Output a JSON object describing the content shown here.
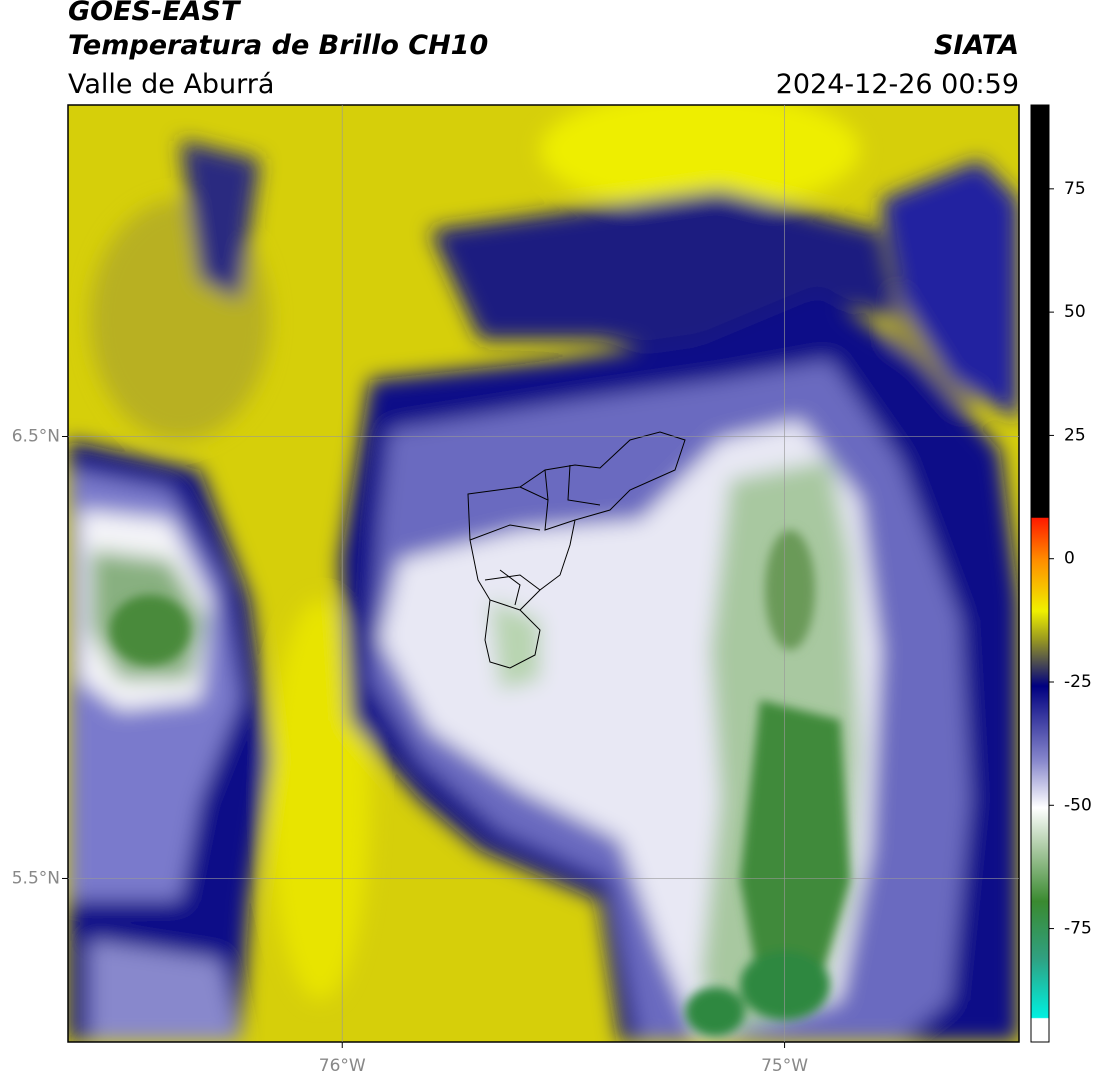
{
  "header": {
    "title": "GOES-EAST",
    "subtitle": "Temperatura de Brillo CH10",
    "region": "Valle de Aburrá",
    "source": "SIATA",
    "datetime": "2024-12-26 00:59"
  },
  "map": {
    "xlim": [
      -76.62,
      -74.47
    ],
    "ylim": [
      5.13,
      7.25
    ],
    "xticks": [
      {
        "value": -76,
        "label": "76°W"
      },
      {
        "value": -75,
        "label": "75°W"
      }
    ],
    "yticks": [
      {
        "value": 6.5,
        "label": "6.5°N"
      },
      {
        "value": 5.5,
        "label": "5.5°N"
      }
    ],
    "grid": true
  },
  "colorbar": {
    "lim": [
      -98,
      92
    ],
    "ticks": [
      75,
      50,
      25,
      0,
      -25,
      -50,
      -75
    ]
  }
}
